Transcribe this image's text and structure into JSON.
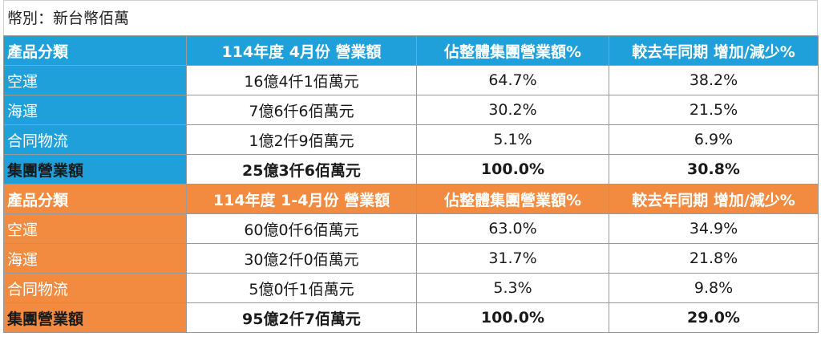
{
  "currency_note": "幣別：新台幣佰萬",
  "colors": {
    "blue": "#1fa0db",
    "orange": "#f28b3f"
  },
  "sections": [
    {
      "header": [
        "產品分類",
        "114年度 4月份 營業額",
        "佔整體集團營業額%",
        "較去年同期 增加/減少%"
      ],
      "rows": [
        [
          "空運",
          "16億4仟1佰萬元",
          "64.7%",
          "38.2%"
        ],
        [
          "海運",
          "7億6仟6佰萬元",
          "30.2%",
          "21.5%"
        ],
        [
          "合同物流",
          "1億2仟9佰萬元",
          "5.1%",
          "6.9%"
        ],
        [
          "集團營業額",
          "25億3仟6佰萬元",
          "100.0%",
          "30.8%"
        ]
      ]
    },
    {
      "header": [
        "產品分類",
        "114年度 1-4月份 營業額",
        "佔整體集團營業額%",
        "較去年同期 增加/減少%"
      ],
      "rows": [
        [
          "空運",
          "60億0仟6佰萬元",
          "63.0%",
          "34.9%"
        ],
        [
          "海運",
          "30億2仟0佰萬元",
          "31.7%",
          "21.8%"
        ],
        [
          "合同物流",
          "5億0仟1佰萬元",
          "5.3%",
          "9.8%"
        ],
        [
          "集團營業額",
          "95億2仟7佰萬元",
          "100.0%",
          "29.0%"
        ]
      ]
    }
  ]
}
